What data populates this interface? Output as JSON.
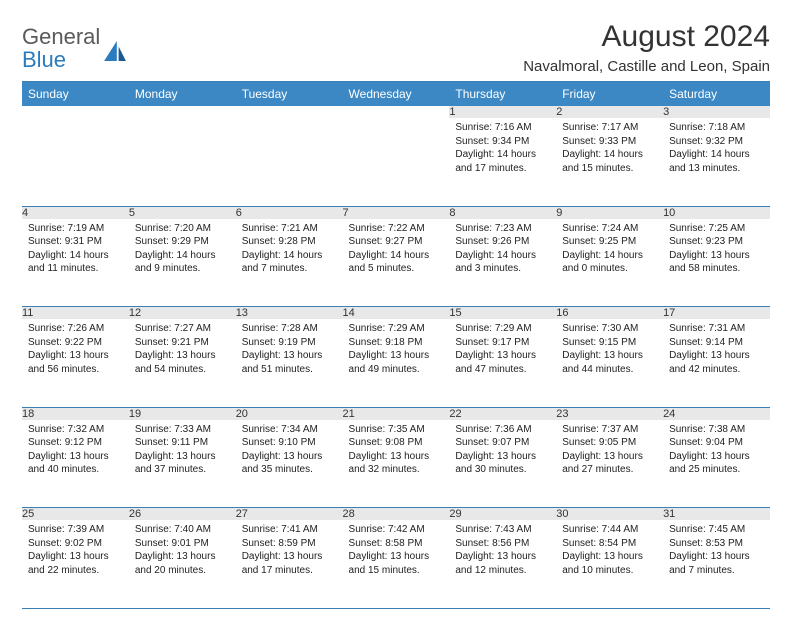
{
  "logo": {
    "line1": "General",
    "line2": "Blue"
  },
  "title": "August 2024",
  "location": "Navalmoral, Castille and Leon, Spain",
  "colors": {
    "header_bg": "#3b88c4",
    "border": "#3b7fb5",
    "daynum_bg": "#e8e8e8",
    "logo_gray": "#5a5a5a",
    "logo_blue": "#2b7bbf"
  },
  "weekdays": [
    "Sunday",
    "Monday",
    "Tuesday",
    "Wednesday",
    "Thursday",
    "Friday",
    "Saturday"
  ],
  "weeks": [
    [
      null,
      null,
      null,
      null,
      {
        "n": "1",
        "sr": "7:16 AM",
        "ss": "9:34 PM",
        "dl": "14 hours and 17 minutes."
      },
      {
        "n": "2",
        "sr": "7:17 AM",
        "ss": "9:33 PM",
        "dl": "14 hours and 15 minutes."
      },
      {
        "n": "3",
        "sr": "7:18 AM",
        "ss": "9:32 PM",
        "dl": "14 hours and 13 minutes."
      }
    ],
    [
      {
        "n": "4",
        "sr": "7:19 AM",
        "ss": "9:31 PM",
        "dl": "14 hours and 11 minutes."
      },
      {
        "n": "5",
        "sr": "7:20 AM",
        "ss": "9:29 PM",
        "dl": "14 hours and 9 minutes."
      },
      {
        "n": "6",
        "sr": "7:21 AM",
        "ss": "9:28 PM",
        "dl": "14 hours and 7 minutes."
      },
      {
        "n": "7",
        "sr": "7:22 AM",
        "ss": "9:27 PM",
        "dl": "14 hours and 5 minutes."
      },
      {
        "n": "8",
        "sr": "7:23 AM",
        "ss": "9:26 PM",
        "dl": "14 hours and 3 minutes."
      },
      {
        "n": "9",
        "sr": "7:24 AM",
        "ss": "9:25 PM",
        "dl": "14 hours and 0 minutes."
      },
      {
        "n": "10",
        "sr": "7:25 AM",
        "ss": "9:23 PM",
        "dl": "13 hours and 58 minutes."
      }
    ],
    [
      {
        "n": "11",
        "sr": "7:26 AM",
        "ss": "9:22 PM",
        "dl": "13 hours and 56 minutes."
      },
      {
        "n": "12",
        "sr": "7:27 AM",
        "ss": "9:21 PM",
        "dl": "13 hours and 54 minutes."
      },
      {
        "n": "13",
        "sr": "7:28 AM",
        "ss": "9:19 PM",
        "dl": "13 hours and 51 minutes."
      },
      {
        "n": "14",
        "sr": "7:29 AM",
        "ss": "9:18 PM",
        "dl": "13 hours and 49 minutes."
      },
      {
        "n": "15",
        "sr": "7:29 AM",
        "ss": "9:17 PM",
        "dl": "13 hours and 47 minutes."
      },
      {
        "n": "16",
        "sr": "7:30 AM",
        "ss": "9:15 PM",
        "dl": "13 hours and 44 minutes."
      },
      {
        "n": "17",
        "sr": "7:31 AM",
        "ss": "9:14 PM",
        "dl": "13 hours and 42 minutes."
      }
    ],
    [
      {
        "n": "18",
        "sr": "7:32 AM",
        "ss": "9:12 PM",
        "dl": "13 hours and 40 minutes."
      },
      {
        "n": "19",
        "sr": "7:33 AM",
        "ss": "9:11 PM",
        "dl": "13 hours and 37 minutes."
      },
      {
        "n": "20",
        "sr": "7:34 AM",
        "ss": "9:10 PM",
        "dl": "13 hours and 35 minutes."
      },
      {
        "n": "21",
        "sr": "7:35 AM",
        "ss": "9:08 PM",
        "dl": "13 hours and 32 minutes."
      },
      {
        "n": "22",
        "sr": "7:36 AM",
        "ss": "9:07 PM",
        "dl": "13 hours and 30 minutes."
      },
      {
        "n": "23",
        "sr": "7:37 AM",
        "ss": "9:05 PM",
        "dl": "13 hours and 27 minutes."
      },
      {
        "n": "24",
        "sr": "7:38 AM",
        "ss": "9:04 PM",
        "dl": "13 hours and 25 minutes."
      }
    ],
    [
      {
        "n": "25",
        "sr": "7:39 AM",
        "ss": "9:02 PM",
        "dl": "13 hours and 22 minutes."
      },
      {
        "n": "26",
        "sr": "7:40 AM",
        "ss": "9:01 PM",
        "dl": "13 hours and 20 minutes."
      },
      {
        "n": "27",
        "sr": "7:41 AM",
        "ss": "8:59 PM",
        "dl": "13 hours and 17 minutes."
      },
      {
        "n": "28",
        "sr": "7:42 AM",
        "ss": "8:58 PM",
        "dl": "13 hours and 15 minutes."
      },
      {
        "n": "29",
        "sr": "7:43 AM",
        "ss": "8:56 PM",
        "dl": "13 hours and 12 minutes."
      },
      {
        "n": "30",
        "sr": "7:44 AM",
        "ss": "8:54 PM",
        "dl": "13 hours and 10 minutes."
      },
      {
        "n": "31",
        "sr": "7:45 AM",
        "ss": "8:53 PM",
        "dl": "13 hours and 7 minutes."
      }
    ]
  ]
}
